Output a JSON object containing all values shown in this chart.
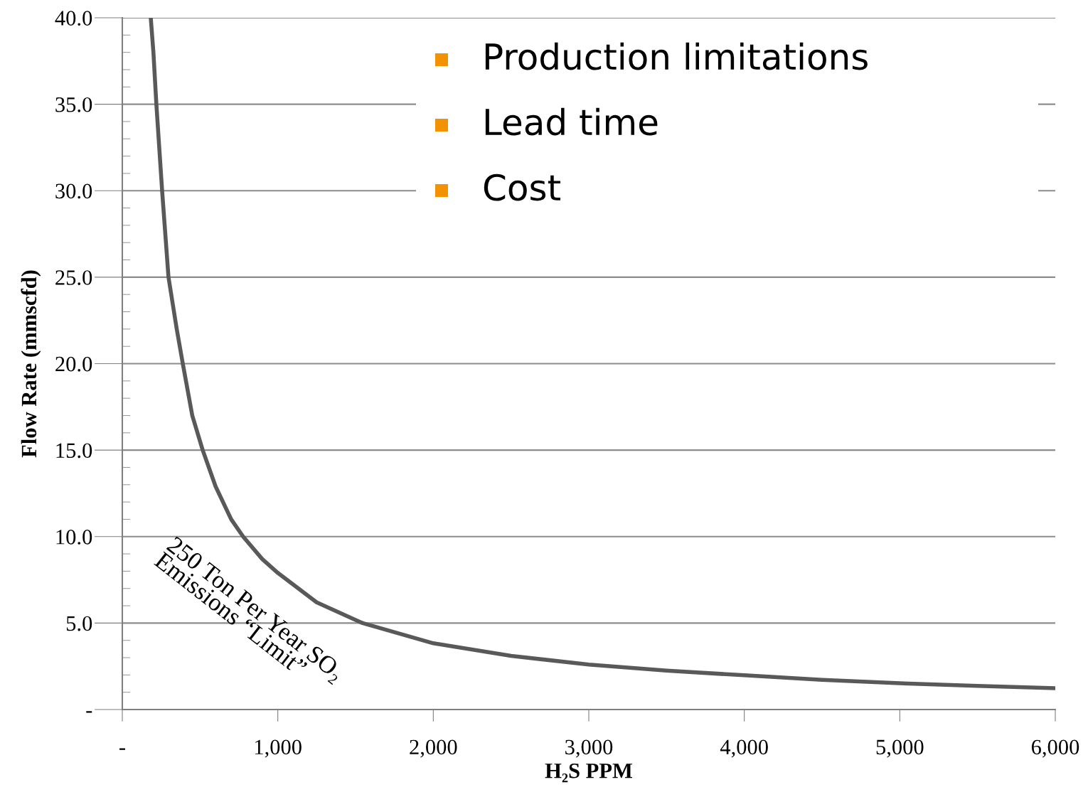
{
  "chart_data": {
    "type": "line",
    "xlabel": "H₂S PPM",
    "ylabel": "Flow Rate (mmscfd)",
    "x": [
      183,
      200,
      219,
      256,
      297,
      350,
      389,
      450,
      517,
      600,
      700,
      777,
      900,
      1000,
      1250,
      1545,
      2000,
      2500,
      3000,
      3500,
      4000,
      4500,
      5000,
      5500,
      6000
    ],
    "series": [
      {
        "color": "#595959",
        "values": [
          40,
          38,
          35,
          30,
          25,
          22,
          20,
          17,
          15,
          12.9,
          11,
          10,
          8.7,
          7.9,
          6.2,
          5,
          3.83,
          3.1,
          2.6,
          2.25,
          1.98,
          1.72,
          1.52,
          1.37,
          1.23
        ]
      }
    ],
    "xlim": [
      0,
      6000
    ],
    "xticks": [
      {
        "value": 0,
        "label": "-"
      },
      {
        "value": 1000,
        "label": "1,000"
      },
      {
        "value": 2000,
        "label": "2,000"
      },
      {
        "value": 3000,
        "label": "3,000"
      },
      {
        "value": 4000,
        "label": "4,000"
      },
      {
        "value": 5000,
        "label": "5,000"
      },
      {
        "value": 6000,
        "label": "6,000"
      }
    ],
    "ylim": [
      0,
      40
    ],
    "yticks": [
      {
        "value": 0,
        "label": "-"
      },
      {
        "value": 5,
        "label": "5.0"
      },
      {
        "value": 10,
        "label": "10.0"
      },
      {
        "value": 15,
        "label": "15.0"
      },
      {
        "value": 20,
        "label": "20.0"
      },
      {
        "value": 25,
        "label": "25.0"
      },
      {
        "value": 30,
        "label": "30.0"
      },
      {
        "value": 35,
        "label": "35.0"
      },
      {
        "value": 40,
        "label": "40.0"
      }
    ],
    "grid": "y",
    "marker": "none",
    "line_style": "solid",
    "annotations": [
      {
        "text": "250 Ton Per Year SO₂\nEmissions “Limit”",
        "x": 777,
        "y": 10
      },
      "Production limitations",
      "Lead time",
      "Cost"
    ]
  }
}
